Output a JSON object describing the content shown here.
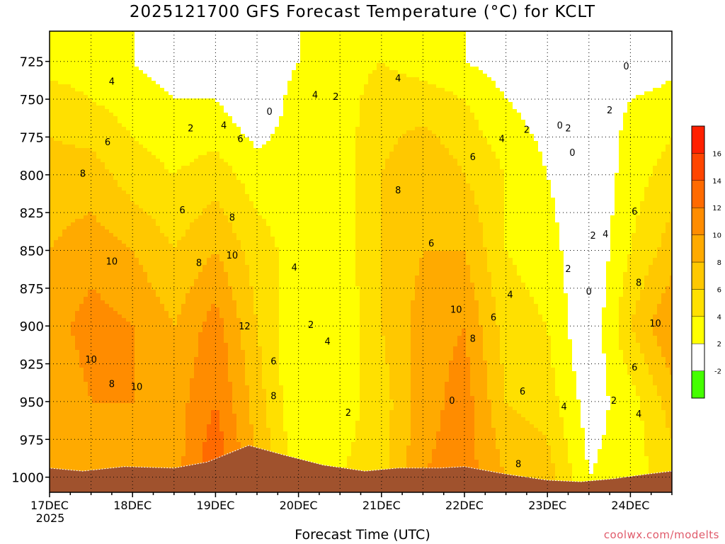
{
  "chart_data": {
    "type": "heatmap",
    "title": "2025121700 GFS Forecast Temperature (°C) for KCLT",
    "xlabel": "Forecast Time (UTC)",
    "ylabel": "",
    "credit": "coolwx.com/modelts",
    "y_axis": {
      "label": "",
      "ticks": [
        725,
        750,
        775,
        800,
        825,
        850,
        875,
        900,
        925,
        950,
        975,
        1000
      ],
      "range": [
        1010,
        705
      ],
      "inverted": true
    },
    "x_axis": {
      "ticks": [
        "17DEC",
        "18DEC",
        "19DEC",
        "20DEC",
        "21DEC",
        "22DEC",
        "23DEC",
        "24DEC"
      ],
      "first_tick_sublabel": "2025",
      "range_days": [
        0,
        7.5
      ]
    },
    "colorbar": {
      "levels": [
        -2,
        2,
        4,
        6,
        8,
        10,
        12,
        14,
        16
      ],
      "labels": [
        "-2",
        "2",
        "4",
        "6",
        "8",
        "10",
        "12",
        "14",
        "16"
      ],
      "colors": [
        "#44ff00",
        "#ffffff",
        "#ffff00",
        "#ffe000",
        "#ffc800",
        "#ffaa00",
        "#ff8c00",
        "#ff6a00",
        "#ff4500",
        "#ff2000"
      ]
    },
    "columns_x_days": [
      0,
      0.5,
      1,
      1.5,
      2,
      2.5,
      3,
      3.5,
      4,
      4.5,
      5,
      5.5,
      6,
      6.5,
      7,
      7.5
    ],
    "columns": [
      {
        "pressure": [
          725,
          750,
          800,
          850,
          900,
          950,
          1000
        ],
        "temp": [
          3,
          5,
          7,
          8,
          9,
          8,
          8
        ]
      },
      {
        "pressure": [
          725,
          750,
          800,
          850,
          900,
          950,
          1000
        ],
        "temp": [
          3,
          4,
          7,
          9,
          11,
          10,
          9
        ]
      },
      {
        "pressure": [
          725,
          750,
          800,
          850,
          900,
          950,
          1000
        ],
        "temp": [
          2,
          3,
          5,
          8,
          10,
          10,
          9
        ]
      },
      {
        "pressure": [
          725,
          750,
          800,
          850,
          900,
          950,
          1000
        ],
        "temp": [
          1,
          2,
          4,
          6,
          8,
          9,
          9
        ]
      },
      {
        "pressure": [
          725,
          750,
          800,
          850,
          900,
          950,
          1000
        ],
        "temp": [
          1,
          2,
          5,
          8,
          11,
          12,
          14
        ]
      },
      {
        "pressure": [
          725,
          750,
          800,
          850,
          900,
          950,
          1000
        ],
        "temp": [
          0,
          0,
          3,
          5,
          6,
          7,
          8
        ]
      },
      {
        "pressure": [
          725,
          750,
          800,
          850,
          900,
          950,
          1000
        ],
        "temp": [
          2,
          3,
          3,
          3,
          2,
          2,
          3
        ]
      },
      {
        "pressure": [
          725,
          750,
          800,
          850,
          900,
          950,
          1000
        ],
        "temp": [
          3,
          3,
          3,
          3,
          2,
          3,
          4
        ]
      },
      {
        "pressure": [
          725,
          750,
          800,
          850,
          900,
          950,
          1000
        ],
        "temp": [
          4,
          5,
          6,
          6,
          6,
          5,
          5
        ]
      },
      {
        "pressure": [
          725,
          750,
          800,
          850,
          900,
          950,
          1000
        ],
        "temp": [
          3,
          5,
          8,
          8,
          9,
          9,
          10
        ]
      },
      {
        "pressure": [
          725,
          750,
          800,
          850,
          900,
          950,
          1000
        ],
        "temp": [
          2,
          4,
          6,
          8,
          10,
          11,
          11
        ]
      },
      {
        "pressure": [
          725,
          750,
          800,
          850,
          900,
          950,
          1000
        ],
        "temp": [
          1,
          2,
          4,
          4,
          5,
          6,
          8
        ]
      },
      {
        "pressure": [
          725,
          750,
          800,
          850,
          900,
          950,
          1000
        ],
        "temp": [
          1,
          1,
          2,
          3,
          4,
          5,
          7
        ]
      },
      {
        "pressure": [
          725,
          750,
          800,
          850,
          900,
          950,
          1000
        ],
        "temp": [
          -1,
          1,
          0,
          0,
          0,
          1,
          2
        ]
      },
      {
        "pressure": [
          725,
          750,
          800,
          850,
          900,
          950,
          1000
        ],
        "temp": [
          0,
          2,
          3,
          4,
          6,
          3,
          3
        ]
      },
      {
        "pressure": [
          725,
          750,
          800,
          850,
          900,
          950,
          1000
        ],
        "temp": [
          1,
          3,
          5,
          7,
          10,
          7,
          5
        ]
      }
    ],
    "contour_labels": [
      {
        "text": "4",
        "x_days": 0.75,
        "p": 738
      },
      {
        "text": "6",
        "x_days": 0.7,
        "p": 778
      },
      {
        "text": "8",
        "x_days": 0.4,
        "p": 799
      },
      {
        "text": "10",
        "x_days": 0.75,
        "p": 857
      },
      {
        "text": "10",
        "x_days": 0.5,
        "p": 922
      },
      {
        "text": "8",
        "x_days": 0.75,
        "p": 938
      },
      {
        "text": "10",
        "x_days": 1.05,
        "p": 940
      },
      {
        "text": "2",
        "x_days": 1.7,
        "p": 769
      },
      {
        "text": "4",
        "x_days": 2.1,
        "p": 767
      },
      {
        "text": "6",
        "x_days": 2.3,
        "p": 776
      },
      {
        "text": "6",
        "x_days": 1.6,
        "p": 823
      },
      {
        "text": "8",
        "x_days": 2.2,
        "p": 828
      },
      {
        "text": "10",
        "x_days": 2.2,
        "p": 853
      },
      {
        "text": "8",
        "x_days": 1.8,
        "p": 858
      },
      {
        "text": "12",
        "x_days": 2.35,
        "p": 900
      },
      {
        "text": "6",
        "x_days": 2.7,
        "p": 923
      },
      {
        "text": "8",
        "x_days": 2.7,
        "p": 946
      },
      {
        "text": "0",
        "x_days": 2.65,
        "p": 758
      },
      {
        "text": "4",
        "x_days": 3.2,
        "p": 747
      },
      {
        "text": "2",
        "x_days": 3.45,
        "p": 748
      },
      {
        "text": "4",
        "x_days": 2.95,
        "p": 861
      },
      {
        "text": "2",
        "x_days": 3.15,
        "p": 899
      },
      {
        "text": "4",
        "x_days": 3.35,
        "p": 910
      },
      {
        "text": "2",
        "x_days": 3.6,
        "p": 957
      },
      {
        "text": "4",
        "x_days": 4.2,
        "p": 736
      },
      {
        "text": "8",
        "x_days": 4.2,
        "p": 810
      },
      {
        "text": "6",
        "x_days": 4.6,
        "p": 845
      },
      {
        "text": "10",
        "x_days": 4.9,
        "p": 889
      },
      {
        "text": "8",
        "x_days": 5.1,
        "p": 908
      },
      {
        "text": "6",
        "x_days": 5.35,
        "p": 894
      },
      {
        "text": "4",
        "x_days": 5.55,
        "p": 879
      },
      {
        "text": "6",
        "x_days": 5.1,
        "p": 788
      },
      {
        "text": "4",
        "x_days": 5.45,
        "p": 776
      },
      {
        "text": "2",
        "x_days": 5.75,
        "p": 770
      },
      {
        "text": "0",
        "x_days": 4.85,
        "p": 949
      },
      {
        "text": "6",
        "x_days": 5.7,
        "p": 943
      },
      {
        "text": "4",
        "x_days": 6.2,
        "p": 953
      },
      {
        "text": "2",
        "x_days": 6.25,
        "p": 862
      },
      {
        "text": "0",
        "x_days": 6.15,
        "p": 767
      },
      {
        "text": "2",
        "x_days": 6.25,
        "p": 769
      },
      {
        "text": "0",
        "x_days": 6.3,
        "p": 785
      },
      {
        "text": "2",
        "x_days": 6.55,
        "p": 840
      },
      {
        "text": "4",
        "x_days": 6.7,
        "p": 839
      },
      {
        "text": "0",
        "x_days": 6.5,
        "p": 877
      },
      {
        "text": "0",
        "x_days": 6.95,
        "p": 728
      },
      {
        "text": "2",
        "x_days": 6.75,
        "p": 757
      },
      {
        "text": "6",
        "x_days": 7.05,
        "p": 824
      },
      {
        "text": "8",
        "x_days": 7.1,
        "p": 871
      },
      {
        "text": "10",
        "x_days": 7.3,
        "p": 898
      },
      {
        "text": "6",
        "x_days": 7.05,
        "p": 927
      },
      {
        "text": "2",
        "x_days": 6.8,
        "p": 949
      },
      {
        "text": "4",
        "x_days": 7.1,
        "p": 958
      },
      {
        "text": "8",
        "x_days": 5.65,
        "p": 991
      }
    ],
    "terrain_color": "#a0522d",
    "terrain_surface_pressure": [
      {
        "x_days": 0.0,
        "p": 994
      },
      {
        "x_days": 0.4,
        "p": 996
      },
      {
        "x_days": 0.9,
        "p": 993
      },
      {
        "x_days": 1.5,
        "p": 994
      },
      {
        "x_days": 1.9,
        "p": 990
      },
      {
        "x_days": 2.4,
        "p": 979
      },
      {
        "x_days": 2.8,
        "p": 985
      },
      {
        "x_days": 3.3,
        "p": 992
      },
      {
        "x_days": 3.8,
        "p": 996
      },
      {
        "x_days": 4.2,
        "p": 994
      },
      {
        "x_days": 4.7,
        "p": 994
      },
      {
        "x_days": 5.0,
        "p": 993
      },
      {
        "x_days": 5.5,
        "p": 998
      },
      {
        "x_days": 6.0,
        "p": 1002
      },
      {
        "x_days": 6.4,
        "p": 1003
      },
      {
        "x_days": 6.8,
        "p": 1001
      },
      {
        "x_days": 7.2,
        "p": 998
      },
      {
        "x_days": 7.5,
        "p": 996
      }
    ]
  }
}
